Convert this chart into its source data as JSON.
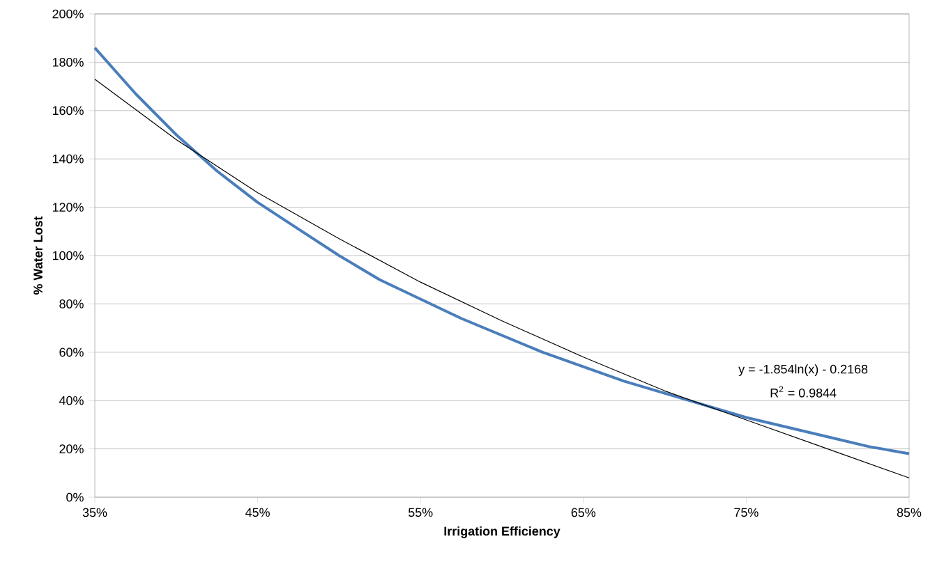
{
  "chart_data": {
    "type": "line",
    "xlabel": "Irrigation Efficiency",
    "ylabel": "% Water Lost",
    "xlim": [
      35,
      85
    ],
    "ylim": [
      0,
      200
    ],
    "xticks": [
      {
        "value": 35,
        "label": "35%"
      },
      {
        "value": 45,
        "label": "45%"
      },
      {
        "value": 55,
        "label": "55%"
      },
      {
        "value": 65,
        "label": "65%"
      },
      {
        "value": 75,
        "label": "75%"
      },
      {
        "value": 85,
        "label": "85%"
      }
    ],
    "yticks": [
      {
        "value": 0,
        "label": "0%"
      },
      {
        "value": 20,
        "label": "20%"
      },
      {
        "value": 40,
        "label": "40%"
      },
      {
        "value": 60,
        "label": "60%"
      },
      {
        "value": 80,
        "label": "80%"
      },
      {
        "value": 100,
        "label": "100%"
      },
      {
        "value": 120,
        "label": "120%"
      },
      {
        "value": 140,
        "label": "140%"
      },
      {
        "value": 160,
        "label": "160%"
      },
      {
        "value": 180,
        "label": "180%"
      },
      {
        "value": 200,
        "label": "200%"
      }
    ],
    "grid": "y",
    "marker": "none",
    "line_style": "solid",
    "annotations": [
      "y = -1.854ln(x) - 0.2168",
      "R$^{2}$ = 0.9844"
    ],
    "series": [
      {
        "color": "#4a7ebb",
        "x": [
          35,
          37.5,
          40,
          42.5,
          45,
          47.5,
          50,
          52.5,
          55,
          57.5,
          60,
          62.5,
          65,
          67.5,
          70,
          72.5,
          75,
          77.5,
          80,
          82.5,
          85
        ],
        "values": [
          186,
          167,
          150,
          135,
          122,
          111,
          100,
          90,
          82,
          74,
          67,
          60,
          54,
          48,
          43,
          38,
          33,
          29,
          25,
          21,
          18
        ]
      },
      {
        "color": "#000000",
        "x": [
          35,
          40,
          45,
          50,
          55,
          60,
          65,
          70,
          75,
          80,
          85
        ],
        "values": [
          173,
          148,
          126,
          107,
          89,
          73,
          58,
          44,
          32,
          20,
          8
        ]
      }
    ]
  }
}
